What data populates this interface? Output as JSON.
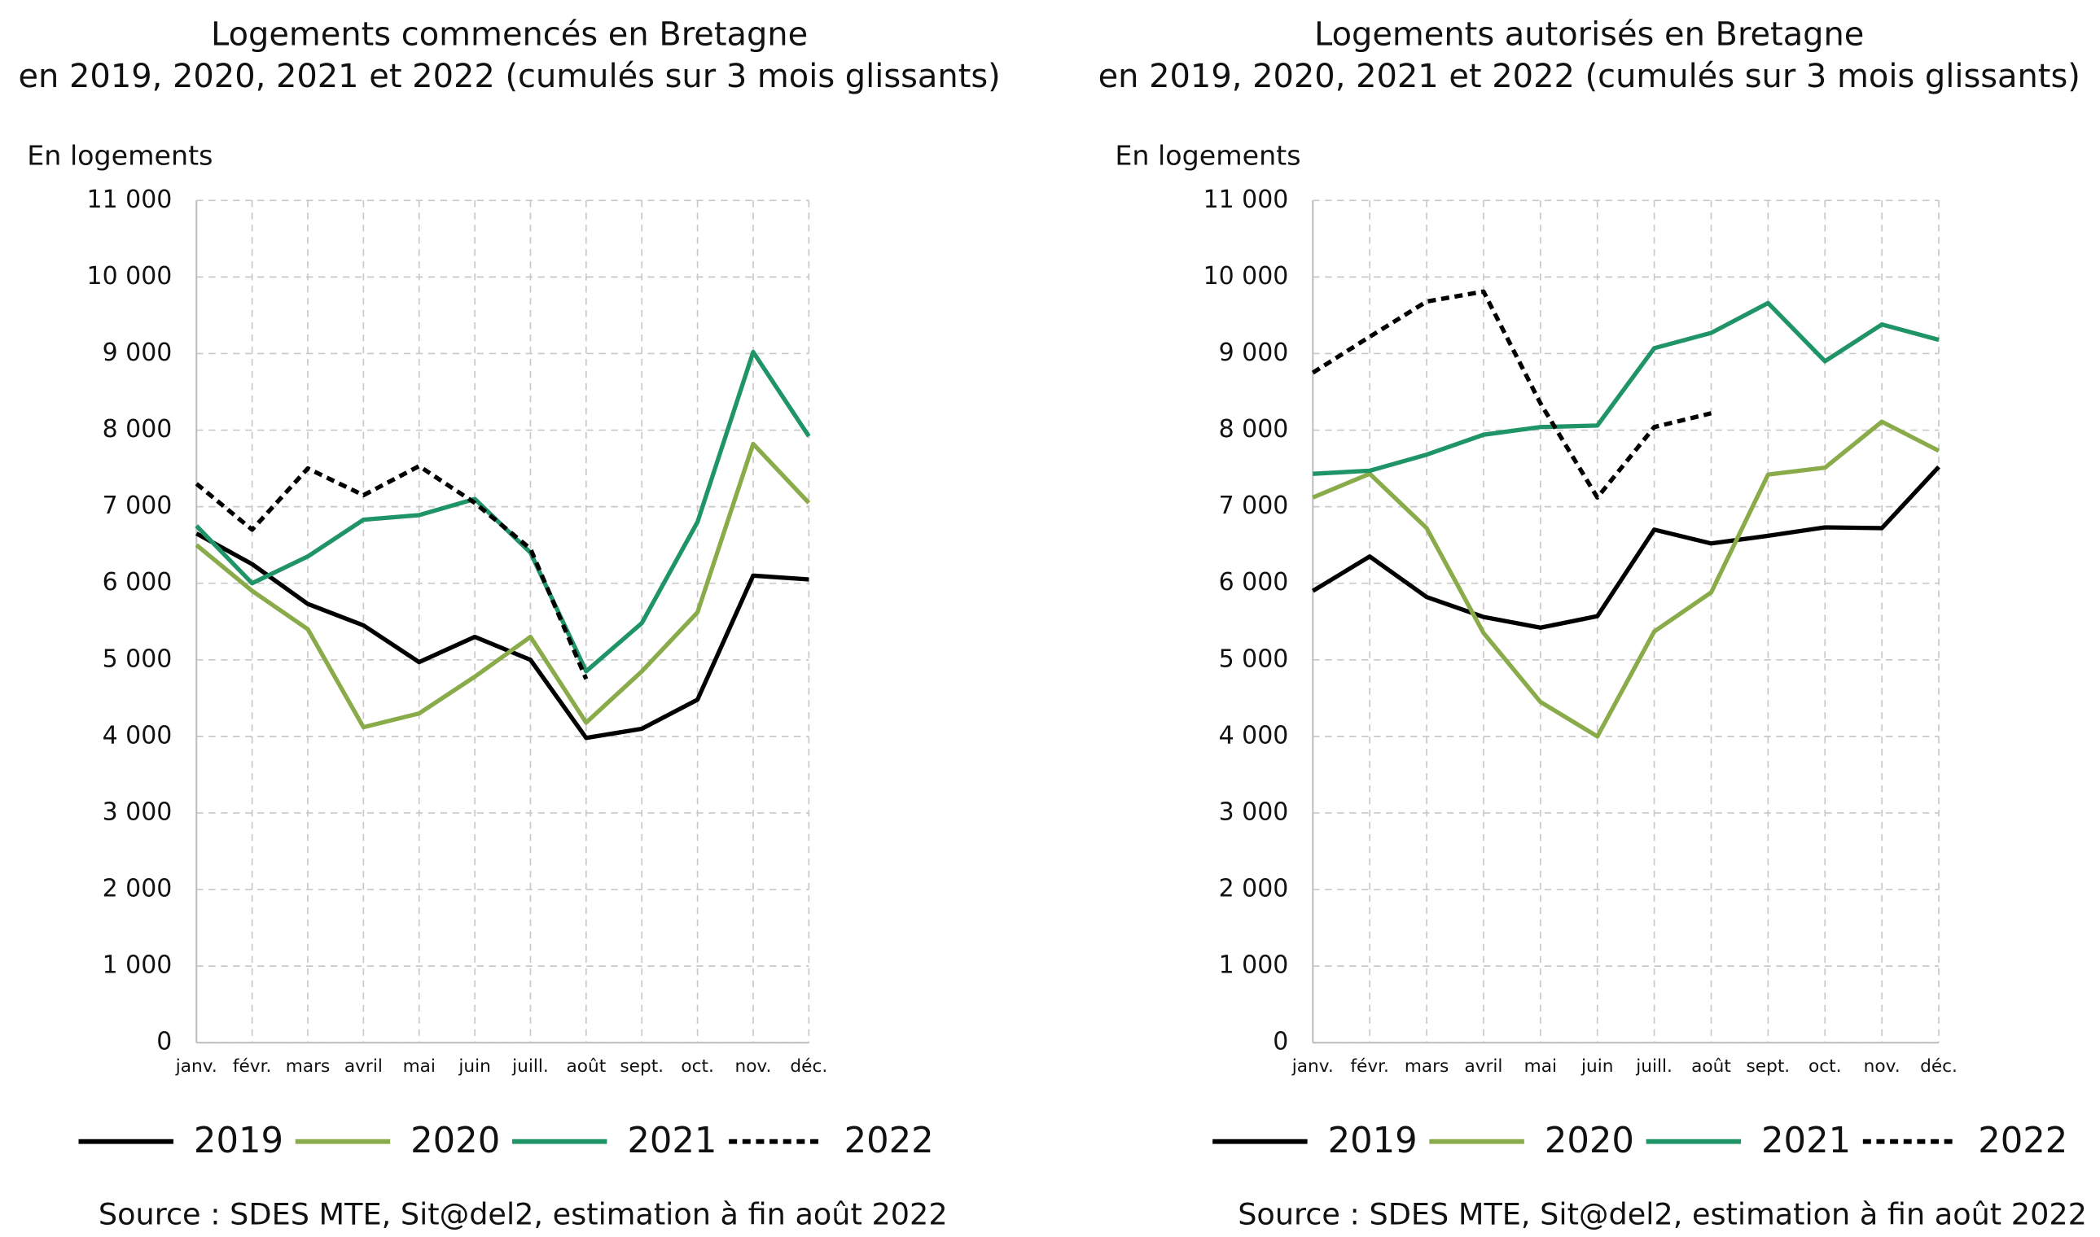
{
  "chart_data": [
    {
      "type": "line",
      "title": "Logements commencés en Bretagne",
      "subtitle": "en 2019, 2020, 2021 et 2022  (cumulés sur 3 mois glissants)",
      "y_label": "En logements",
      "source": "Source : SDES MTE, Sit@del2, estimation à fin août 2022",
      "categories": [
        "janv.",
        "févr.",
        "mars",
        "avril",
        "mai",
        "juin",
        "juill.",
        "août",
        "sept.",
        "oct.",
        "nov.",
        "déc."
      ],
      "ylim": [
        0,
        11000
      ],
      "yticks": [
        0,
        {
          "value": 1000,
          "label": "1 000"
        },
        {
          "value": 2000,
          "label": "2 000"
        },
        {
          "value": 3000,
          "label": "3 000"
        },
        {
          "value": 4000,
          "label": "4 000"
        },
        {
          "value": 5000,
          "label": "5 000"
        },
        {
          "value": 6000,
          "label": "6 000"
        },
        {
          "value": 7000,
          "label": "7 000"
        },
        {
          "value": 8000,
          "label": "8 000"
        },
        {
          "value": 9000,
          "label": "9 000"
        },
        {
          "value": 10000,
          "label": "10 000"
        },
        {
          "value": 11000,
          "label": "11 000"
        }
      ],
      "grid": true,
      "legend": "bottom",
      "series": [
        {
          "name": "2019",
          "color": "#000000",
          "dashed": false,
          "values": [
            6650,
            6250,
            5730,
            5450,
            4970,
            5300,
            5000,
            3980,
            4100,
            4480,
            6100,
            6050
          ]
        },
        {
          "name": "2020",
          "color": "#8aab4a",
          "dashed": false,
          "values": [
            6500,
            5900,
            5400,
            4120,
            4300,
            4780,
            5300,
            4180,
            4850,
            5620,
            7820,
            7050
          ]
        },
        {
          "name": "2021",
          "color": "#1f9466",
          "dashed": false,
          "values": [
            6750,
            6000,
            6350,
            6830,
            6890,
            7100,
            6400,
            4850,
            5480,
            6800,
            9020,
            7920
          ]
        },
        {
          "name": "2022",
          "color": "#000000",
          "dashed": true,
          "values": [
            7300,
            6700,
            7500,
            7150,
            7530,
            7050,
            6450,
            4750,
            null,
            null,
            null,
            null
          ]
        }
      ]
    },
    {
      "type": "line",
      "title": "Logements autorisés en Bretagne",
      "subtitle": "en 2019, 2020, 2021 et 2022 (cumulés sur 3 mois glissants)",
      "y_label": "En logements",
      "source": "Source : SDES MTE, Sit@del2, estimation à fin août 2022",
      "categories": [
        "janv.",
        "févr.",
        "mars",
        "avril",
        "mai",
        "juin",
        "juill.",
        "août",
        "sept.",
        "oct.",
        "nov.",
        "déc."
      ],
      "ylim": [
        0,
        11000
      ],
      "yticks": [
        0,
        {
          "value": 1000,
          "label": "1 000"
        },
        {
          "value": 2000,
          "label": "2 000"
        },
        {
          "value": 3000,
          "label": "3 000"
        },
        {
          "value": 4000,
          "label": "4 000"
        },
        {
          "value": 5000,
          "label": "5 000"
        },
        {
          "value": 6000,
          "label": "6 000"
        },
        {
          "value": 7000,
          "label": "7 000"
        },
        {
          "value": 8000,
          "label": "8 000"
        },
        {
          "value": 9000,
          "label": "9 000"
        },
        {
          "value": 10000,
          "label": "10 000"
        },
        {
          "value": 11000,
          "label": "11 000"
        }
      ],
      "grid": true,
      "legend": "bottom",
      "series": [
        {
          "name": "2019",
          "color": "#000000",
          "dashed": false,
          "values": [
            5900,
            6350,
            5820,
            5560,
            5420,
            5570,
            6700,
            6520,
            6620,
            6730,
            6720,
            7520
          ]
        },
        {
          "name": "2020",
          "color": "#8aab4a",
          "dashed": false,
          "values": [
            7120,
            7430,
            6720,
            5350,
            4450,
            4000,
            5370,
            5880,
            7420,
            7510,
            8110,
            7730
          ]
        },
        {
          "name": "2021",
          "color": "#1f9466",
          "dashed": false,
          "values": [
            7430,
            7470,
            7680,
            7940,
            8040,
            8060,
            9070,
            9270,
            9660,
            8900,
            9380,
            9180
          ]
        },
        {
          "name": "2022",
          "color": "#000000",
          "dashed": true,
          "values": [
            8750,
            9220,
            9680,
            9810,
            8350,
            7120,
            8040,
            8220,
            null,
            null,
            null,
            null
          ]
        }
      ]
    }
  ]
}
